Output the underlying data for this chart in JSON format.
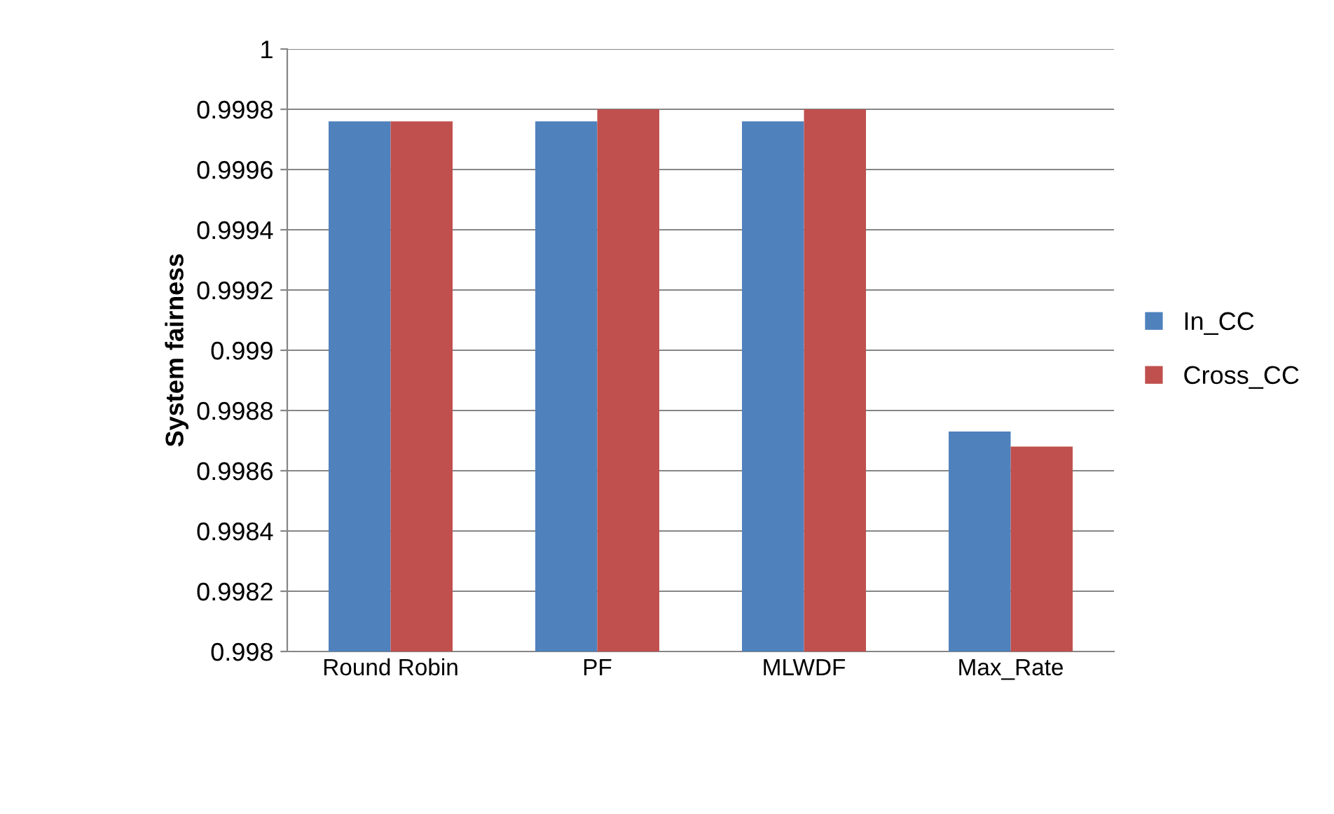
{
  "chart_data": {
    "type": "bar",
    "ylabel": "System fairness",
    "categories": [
      "Round Robin",
      "PF",
      "MLWDF",
      "Max_Rate"
    ],
    "series": [
      {
        "name": "In_CC",
        "color": "#4f81bd",
        "values": [
          0.99976,
          0.99976,
          0.99976,
          0.99873
        ]
      },
      {
        "name": "Cross_CC",
        "color": "#c0504d",
        "values": [
          0.99976,
          0.9998,
          0.9998,
          0.99868
        ]
      }
    ],
    "ylim": [
      0.998,
      1
    ],
    "yticks": [
      0.998,
      0.9982,
      0.9984,
      0.9986,
      0.9988,
      0.999,
      0.9992,
      0.9994,
      0.9996,
      0.9998,
      1
    ],
    "grid": "y",
    "legend": "right"
  }
}
